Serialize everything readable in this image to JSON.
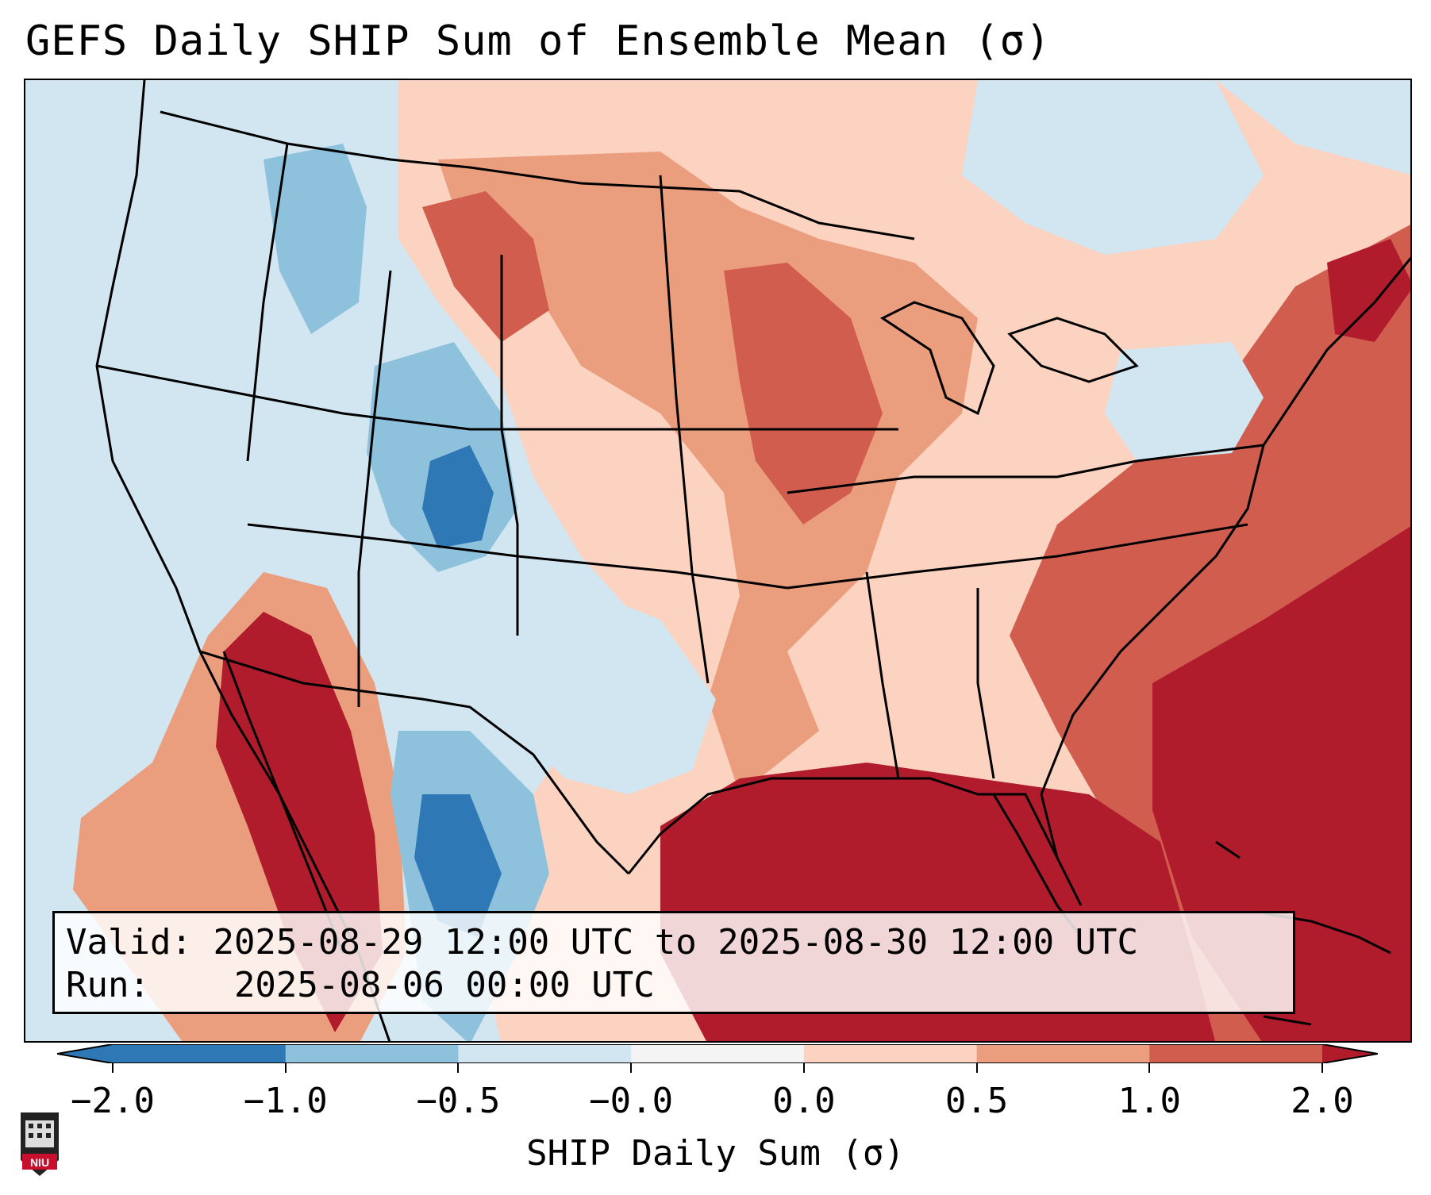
{
  "title": "GEFS Daily SHIP Sum of Ensemble Mean (σ)",
  "info": {
    "valid_label": "Valid:",
    "valid_value": "2025-08-29 12:00 UTC to 2025-08-30 12:00 UTC",
    "run_label": "Run:",
    "run_value": "2025-08-06 00:00 UTC"
  },
  "colorbar": {
    "label": "SHIP Daily Sum (σ)",
    "ticks": [
      "−2.0",
      "−1.0",
      "−0.5",
      "−0.0",
      "0.0",
      "0.5",
      "1.0",
      "2.0"
    ],
    "colors": [
      "#2f78b6",
      "#8ec1dc",
      "#d2e6f1",
      "#f4f4f4",
      "#fbd3c0",
      "#eb9e7e",
      "#d15d4f",
      "#b01c2b"
    ]
  },
  "logo": {
    "text": "NIU"
  }
}
